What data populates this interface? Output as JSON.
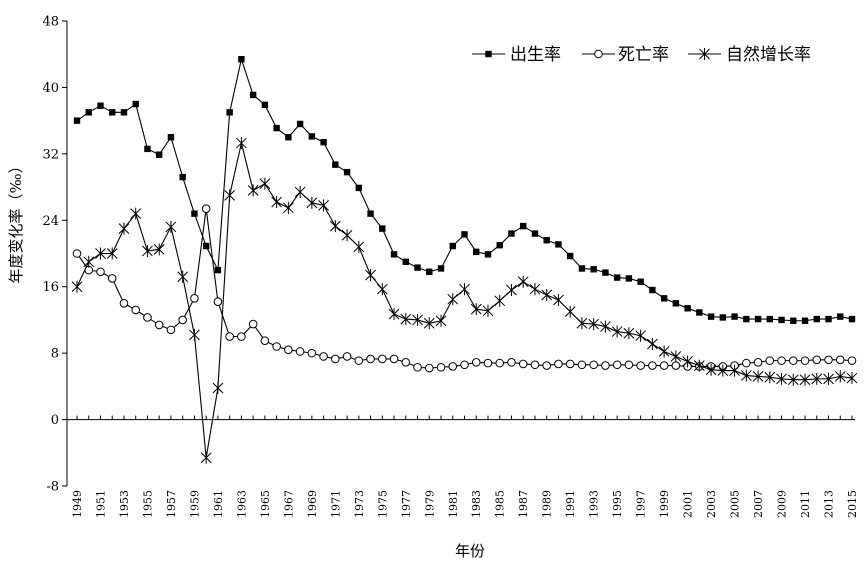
{
  "chart_data": {
    "type": "line",
    "xlabel": "年份",
    "ylabel": "年度变化率（‰）",
    "ylim": [
      -8,
      48
    ],
    "yticks": [
      -8,
      0,
      8,
      16,
      24,
      32,
      40,
      48
    ],
    "xlim": [
      1949,
      2015
    ],
    "xticks": [
      1949,
      1951,
      1953,
      1955,
      1957,
      1959,
      1961,
      1963,
      1965,
      1967,
      1969,
      1971,
      1973,
      1975,
      1977,
      1979,
      1981,
      1983,
      1985,
      1987,
      1989,
      1991,
      1993,
      1995,
      1997,
      1999,
      2001,
      2003,
      2005,
      2007,
      2009,
      2011,
      2013,
      2015
    ],
    "legend_position": "top-right",
    "grid": false,
    "x": [
      1949,
      1950,
      1951,
      1952,
      1953,
      1954,
      1955,
      1956,
      1957,
      1958,
      1959,
      1960,
      1961,
      1962,
      1963,
      1964,
      1965,
      1966,
      1967,
      1968,
      1969,
      1970,
      1971,
      1972,
      1973,
      1974,
      1975,
      1976,
      1977,
      1978,
      1979,
      1980,
      1981,
      1982,
      1983,
      1984,
      1985,
      1986,
      1987,
      1988,
      1989,
      1990,
      1991,
      1992,
      1993,
      1994,
      1995,
      1996,
      1997,
      1998,
      1999,
      2000,
      2001,
      2002,
      2003,
      2004,
      2005,
      2006,
      2007,
      2008,
      2009,
      2010,
      2011,
      2012,
      2013,
      2014,
      2015
    ],
    "series": [
      {
        "name": "出生率",
        "marker": "square",
        "values": [
          36.0,
          37.0,
          37.8,
          37.0,
          37.0,
          38.0,
          32.6,
          31.9,
          34.0,
          29.2,
          24.8,
          20.9,
          18.0,
          37.0,
          43.4,
          39.1,
          37.9,
          35.1,
          34.0,
          35.6,
          34.1,
          33.4,
          30.7,
          29.8,
          27.9,
          24.8,
          23.0,
          19.9,
          19.0,
          18.3,
          17.8,
          18.2,
          20.9,
          22.3,
          20.2,
          19.9,
          21.0,
          22.4,
          23.3,
          22.4,
          21.6,
          21.1,
          19.7,
          18.2,
          18.1,
          17.7,
          17.1,
          17.0,
          16.6,
          15.6,
          14.6,
          14.0,
          13.4,
          12.9,
          12.4,
          12.3,
          12.4,
          12.1,
          12.1,
          12.1,
          12.0,
          11.9,
          11.9,
          12.1,
          12.1,
          12.4,
          12.1
        ]
      },
      {
        "name": "死亡率",
        "marker": "circle",
        "values": [
          20.0,
          18.0,
          17.8,
          17.0,
          14.0,
          13.2,
          12.3,
          11.4,
          10.8,
          12.0,
          14.6,
          25.4,
          14.2,
          10.0,
          10.0,
          11.5,
          9.5,
          8.8,
          8.4,
          8.2,
          8.0,
          7.6,
          7.3,
          7.6,
          7.1,
          7.3,
          7.3,
          7.3,
          6.9,
          6.3,
          6.2,
          6.3,
          6.4,
          6.6,
          6.9,
          6.8,
          6.8,
          6.9,
          6.7,
          6.6,
          6.5,
          6.7,
          6.7,
          6.6,
          6.6,
          6.5,
          6.6,
          6.6,
          6.5,
          6.5,
          6.5,
          6.5,
          6.4,
          6.4,
          6.4,
          6.4,
          6.5,
          6.8,
          6.9,
          7.1,
          7.1,
          7.1,
          7.1,
          7.2,
          7.2,
          7.2,
          7.1
        ]
      },
      {
        "name": "自然增长率",
        "marker": "star",
        "values": [
          16.0,
          19.0,
          20.0,
          20.0,
          23.0,
          24.8,
          20.3,
          20.5,
          23.2,
          17.2,
          10.2,
          -4.6,
          3.8,
          27.0,
          33.3,
          27.6,
          28.4,
          26.2,
          25.5,
          27.4,
          26.1,
          25.8,
          23.3,
          22.2,
          20.8,
          17.4,
          15.7,
          12.7,
          12.1,
          12.0,
          11.6,
          11.9,
          14.5,
          15.7,
          13.3,
          13.1,
          14.3,
          15.6,
          16.6,
          15.7,
          15.0,
          14.4,
          13.0,
          11.6,
          11.5,
          11.2,
          10.6,
          10.4,
          10.1,
          9.1,
          8.2,
          7.6,
          7.0,
          6.5,
          6.0,
          5.9,
          5.9,
          5.3,
          5.2,
          5.1,
          4.9,
          4.8,
          4.8,
          4.9,
          4.9,
          5.2,
          5.0
        ]
      }
    ]
  }
}
